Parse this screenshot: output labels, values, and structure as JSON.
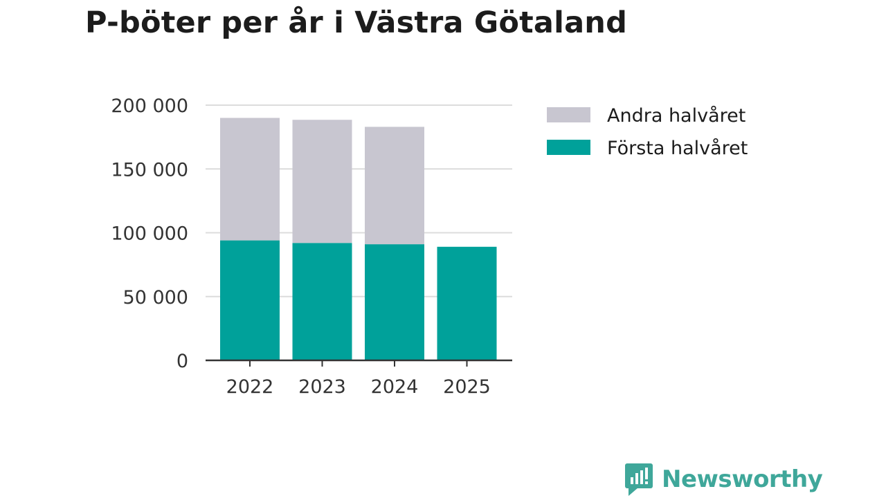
{
  "chart_data": {
    "type": "bar",
    "stacked": true,
    "title": "P-böter per år i Västra Götaland",
    "categories": [
      "2022",
      "2023",
      "2024",
      "2025"
    ],
    "series": [
      {
        "name": "Första halvåret",
        "values": [
          94000,
          92000,
          91000,
          89000
        ],
        "color": "#00a19a"
      },
      {
        "name": "Andra halvåret",
        "values": [
          96000,
          96500,
          92000,
          0
        ],
        "color": "#c8c6d0"
      }
    ],
    "ylim": [
      0,
      200000
    ],
    "yticks": [
      0,
      50000,
      100000,
      150000,
      200000
    ],
    "ytick_labels": [
      "0",
      "50 000",
      "100 000",
      "150 000",
      "200 000"
    ],
    "xlabel": "",
    "ylabel": "",
    "grid": true,
    "legend": {
      "position": "right",
      "entries": [
        {
          "name": "Andra halvåret",
          "color": "#c8c6d0"
        },
        {
          "name": "Första halvåret",
          "color": "#00a19a"
        }
      ]
    }
  },
  "brand": {
    "name": "Newsworthy",
    "logo_icon": "bar-chart-speech-bubble-icon",
    "color": "#3fa79a"
  }
}
